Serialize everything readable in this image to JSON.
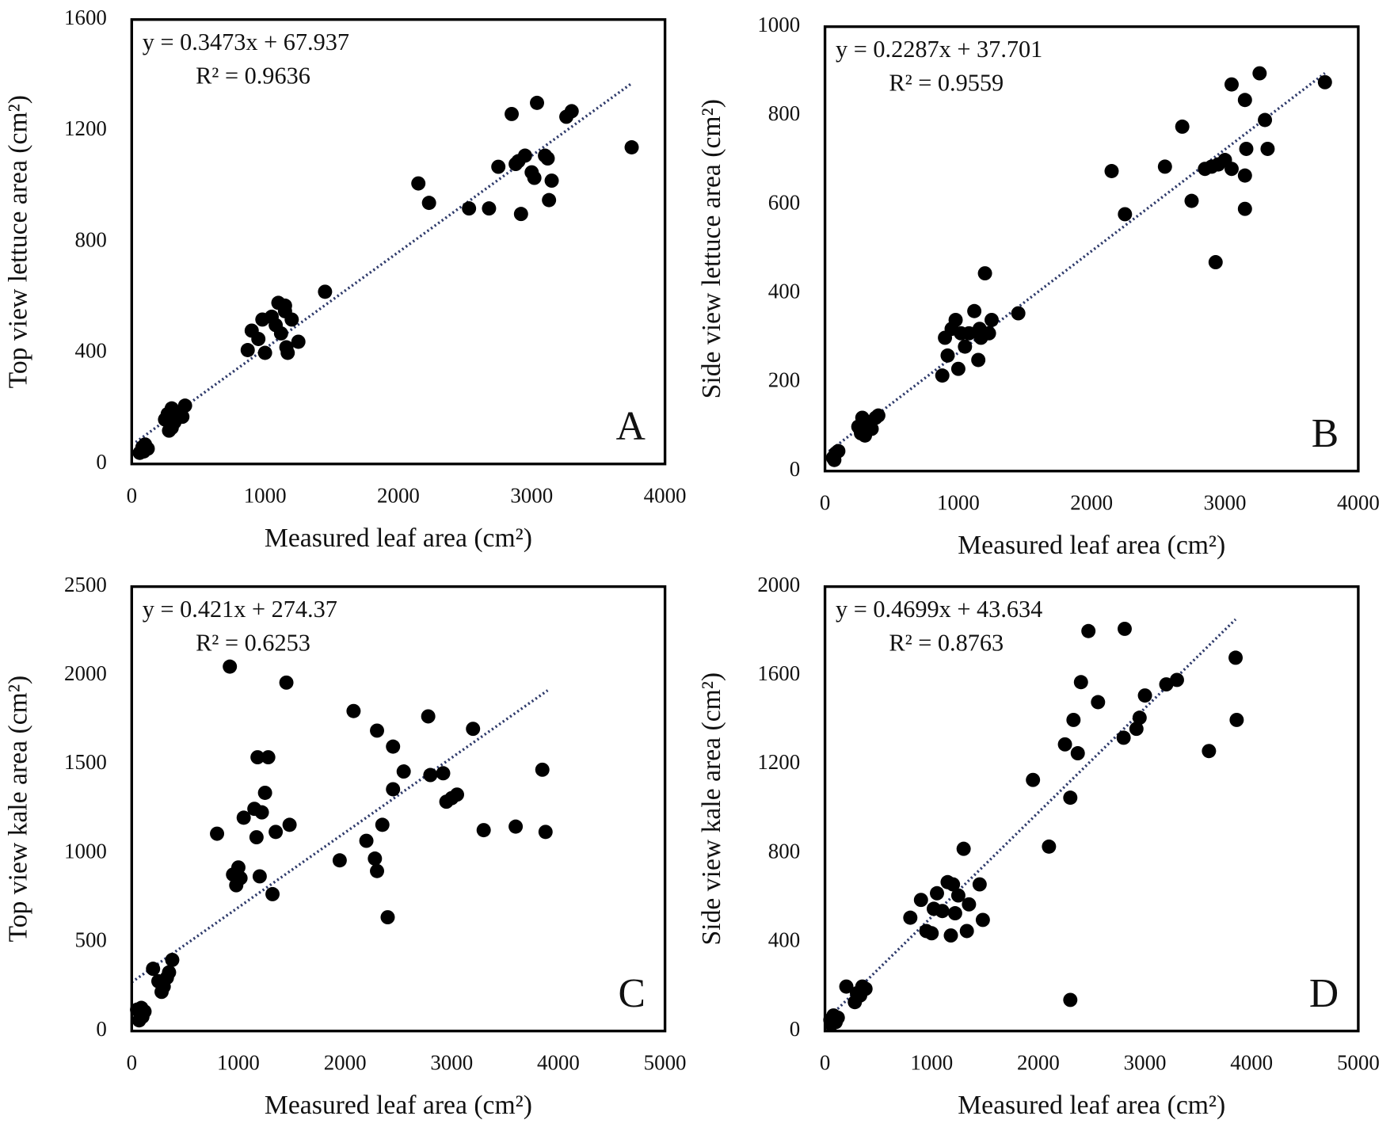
{
  "chart_data": [
    {
      "type": "scatter",
      "x_label": "Measured leaf area (cm²)",
      "y_label": "Top view lettuce area (cm²)",
      "equation": "y = 0.3473x + 67.937",
      "r_squared": "R² = 0.9636",
      "panel_label": "A",
      "color": "#000000",
      "xlim": [
        0,
        4000
      ],
      "xticks": [
        0,
        1000,
        2000,
        3000,
        4000
      ],
      "ylim": [
        0,
        1600
      ],
      "yticks": [
        0,
        400,
        800,
        1200,
        1600
      ],
      "trendline": {
        "slope": 0.3473,
        "intercept": 67.937,
        "x_range": [
          30,
          3750
        ]
      },
      "x": [
        60,
        80,
        100,
        120,
        90,
        250,
        280,
        300,
        320,
        350,
        380,
        400,
        300,
        270,
        870,
        900,
        950,
        980,
        1000,
        1050,
        1080,
        1100,
        1120,
        1150,
        1160,
        1170,
        1200,
        1150,
        1250,
        1450,
        2150,
        2230,
        2530,
        2680,
        2750,
        2850,
        2880,
        2920,
        2950,
        3000,
        3020,
        3040,
        3100,
        3130,
        3150,
        3260,
        3300,
        3750,
        2900,
        3120
      ],
      "values": [
        40,
        60,
        70,
        55,
        45,
        160,
        120,
        200,
        150,
        180,
        170,
        210,
        130,
        180,
        410,
        480,
        450,
        520,
        400,
        530,
        500,
        580,
        470,
        550,
        420,
        400,
        520,
        570,
        440,
        620,
        1010,
        940,
        920,
        920,
        1070,
        1260,
        1080,
        900,
        1110,
        1050,
        1030,
        1300,
        1110,
        950,
        1020,
        1250,
        1270,
        1140,
        1090,
        1100
      ]
    },
    {
      "type": "scatter",
      "x_label": "Measured leaf area (cm²)",
      "y_label": "Side view lettuce area (cm²)",
      "equation": "y = 0.2287x + 37.701",
      "r_squared": "R² = 0.9559",
      "panel_label": "B",
      "color": "#000000",
      "xlim": [
        0,
        4000
      ],
      "xticks": [
        0,
        1000,
        2000,
        3000,
        4000
      ],
      "ylim": [
        0,
        1000
      ],
      "yticks": [
        0,
        200,
        400,
        600,
        800,
        1000
      ],
      "trendline": {
        "slope": 0.2287,
        "intercept": 37.701,
        "x_range": [
          30,
          3750
        ]
      },
      "x": [
        60,
        80,
        100,
        70,
        250,
        280,
        300,
        320,
        350,
        380,
        300,
        400,
        270,
        880,
        900,
        920,
        950,
        980,
        1000,
        1020,
        1050,
        1080,
        1120,
        1150,
        1160,
        1170,
        1200,
        1230,
        1250,
        1450,
        2150,
        2250,
        2550,
        2680,
        2750,
        2850,
        2900,
        2950,
        2930,
        3000,
        3050,
        3050,
        3150,
        3150,
        3150,
        3160,
        3260,
        3300,
        3320,
        3750
      ],
      "values": [
        30,
        40,
        45,
        25,
        100,
        120,
        80,
        110,
        95,
        120,
        90,
        125,
        85,
        215,
        300,
        260,
        320,
        340,
        230,
        310,
        280,
        310,
        360,
        250,
        320,
        300,
        445,
        310,
        340,
        355,
        675,
        578,
        685,
        775,
        608,
        680,
        685,
        690,
        470,
        700,
        870,
        680,
        835,
        665,
        590,
        725,
        895,
        790,
        725,
        875
      ]
    },
    {
      "type": "scatter",
      "x_label": "Measured leaf area (cm²)",
      "y_label": "Top view kale area (cm²)",
      "equation": "y = 0.421x + 274.37",
      "r_squared": "R² = 0.6253",
      "panel_label": "C",
      "color": "#000000",
      "xlim": [
        0,
        5000
      ],
      "xticks": [
        0,
        1000,
        2000,
        3000,
        4000,
        5000
      ],
      "ylim": [
        0,
        2500
      ],
      "yticks": [
        0,
        500,
        1000,
        1500,
        2000,
        2500
      ],
      "trendline": {
        "slope": 0.421,
        "intercept": 274.37,
        "x_range": [
          0,
          3900
        ]
      },
      "x": [
        50,
        80,
        100,
        70,
        120,
        90,
        200,
        250,
        280,
        300,
        330,
        350,
        380,
        800,
        920,
        950,
        980,
        1000,
        1020,
        1050,
        1150,
        1170,
        1180,
        1200,
        1220,
        1250,
        1280,
        1320,
        1350,
        1450,
        1480,
        1950,
        2080,
        2200,
        2280,
        2300,
        2300,
        2350,
        2400,
        2450,
        2450,
        2550,
        2780,
        2800,
        2920,
        2950,
        3000,
        3050,
        3200,
        3300,
        3600,
        3850,
        3880
      ],
      "values": [
        120,
        100,
        80,
        60,
        110,
        130,
        350,
        280,
        220,
        250,
        300,
        330,
        400,
        1110,
        2050,
        880,
        820,
        920,
        860,
        1200,
        1250,
        1090,
        1540,
        870,
        1230,
        1340,
        1540,
        770,
        1120,
        1960,
        1160,
        960,
        1800,
        1070,
        970,
        1690,
        900,
        1160,
        640,
        1600,
        1360,
        1460,
        1770,
        1440,
        1450,
        1290,
        1310,
        1330,
        1700,
        1130,
        1150,
        1470,
        1120
      ]
    },
    {
      "type": "scatter",
      "x_label": "Measured leaf area (cm²)",
      "y_label": "Side view kale area (cm²)",
      "equation": "y = 0.4699x + 43.634",
      "r_squared": "R² = 0.8763",
      "panel_label": "D",
      "color": "#000000",
      "xlim": [
        0,
        5000
      ],
      "xticks": [
        0,
        1000,
        2000,
        3000,
        4000,
        5000
      ],
      "ylim": [
        0,
        2000
      ],
      "yticks": [
        0,
        400,
        800,
        1200,
        1600,
        2000
      ],
      "trendline": {
        "slope": 0.4699,
        "intercept": 43.634,
        "x_range": [
          0,
          3850
        ]
      },
      "x": [
        50,
        80,
        100,
        60,
        120,
        200,
        280,
        300,
        330,
        350,
        380,
        800,
        900,
        950,
        1000,
        1020,
        1050,
        1100,
        1150,
        1180,
        1200,
        1220,
        1250,
        1300,
        1330,
        1350,
        1450,
        1480,
        1950,
        2100,
        2250,
        2300,
        2330,
        2300,
        2370,
        2400,
        2470,
        2560,
        2800,
        2810,
        2920,
        2950,
        3000,
        3200,
        3300,
        3600,
        3850,
        3860
      ],
      "values": [
        50,
        70,
        40,
        30,
        60,
        200,
        130,
        170,
        160,
        200,
        190,
        510,
        590,
        450,
        440,
        550,
        620,
        540,
        670,
        430,
        660,
        530,
        610,
        820,
        450,
        570,
        660,
        500,
        1130,
        830,
        1290,
        1050,
        1400,
        140,
        1250,
        1570,
        1800,
        1480,
        1320,
        1810,
        1360,
        1410,
        1510,
        1560,
        1580,
        1260,
        1680,
        1400
      ]
    }
  ]
}
